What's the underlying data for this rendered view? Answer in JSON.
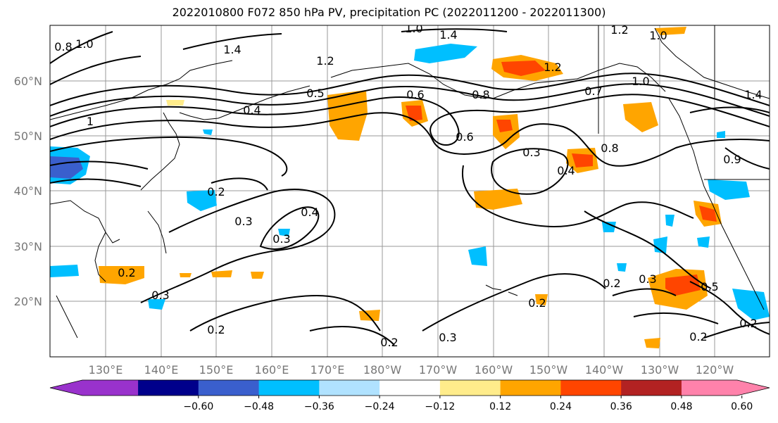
{
  "title": "2022010800 F072 850 hPa PV, precipitation PC (2022011200 - 2022011300)",
  "lat_labels": [
    "60°N",
    "50°N",
    "40°N",
    "30°N",
    "20°N"
  ],
  "lon_labels": [
    "130°E",
    "140°E",
    "150°E",
    "160°E",
    "170°E",
    "180°W",
    "170°W",
    "160°W",
    "150°W",
    "140°W",
    "130°W",
    "120°W"
  ],
  "contour_labels": [
    "0.8",
    "1.0",
    "1.4",
    "1.0",
    "1.4",
    "1.2",
    "0.5",
    "0.4",
    "1",
    "0.6",
    "0.8",
    "1.2",
    "1.0",
    "0.7",
    "1.4",
    "0.6",
    "0.3",
    "0.8",
    "0.4",
    "0.2",
    "0.3",
    "0.4",
    "0.3",
    "0.2",
    "0.3",
    "0.2",
    "0.2",
    "0.3",
    "0.2",
    "0.2",
    "0.3",
    "0.5",
    "0.2",
    "0.2",
    "1.2",
    "1.0",
    "0.9"
  ],
  "colorbar": {
    "ticks": [
      "−0.60",
      "−0.48",
      "−0.36",
      "−0.24",
      "−0.12",
      "0.12",
      "0.24",
      "0.36",
      "0.48",
      "0.60"
    ],
    "colors": [
      "#9932cc",
      "#00008b",
      "#3a5fcd",
      "#00bfff",
      "#b0e2ff",
      "#ffffff",
      "#ffec8b",
      "#ffa500",
      "#ff4500",
      "#b22222",
      "#ff82ab"
    ]
  }
}
